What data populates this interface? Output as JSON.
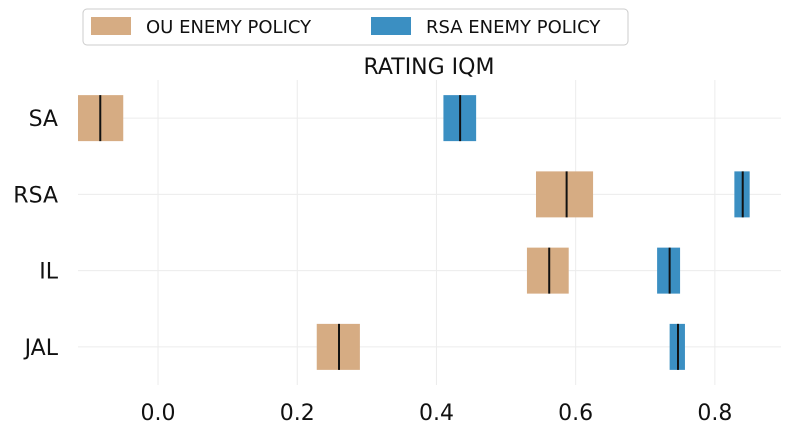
{
  "chart_data": {
    "type": "bar",
    "title": "RATING IQM",
    "xlabel": "",
    "ylabel": "",
    "categories": [
      "SA",
      "RSA",
      "IL",
      "JAL"
    ],
    "xlim": [
      -0.115,
      0.895
    ],
    "xticks": [
      0.0,
      0.2,
      0.4,
      0.6,
      0.8
    ],
    "grid": true,
    "legend_placement": "top-left, above plot",
    "series": [
      {
        "name": "OU ENEMY POLICY",
        "color": "#d6ac83",
        "intervals": [
          {
            "category": "SA",
            "low": -0.115,
            "high": -0.05,
            "median": -0.083
          },
          {
            "category": "RSA",
            "low": 0.543,
            "high": 0.625,
            "median": 0.587
          },
          {
            "category": "IL",
            "low": 0.53,
            "high": 0.59,
            "median": 0.562
          },
          {
            "category": "JAL",
            "low": 0.228,
            "high": 0.29,
            "median": 0.26
          }
        ]
      },
      {
        "name": "RSA ENEMY POLICY",
        "color": "#3b8fc2",
        "intervals": [
          {
            "category": "SA",
            "low": 0.41,
            "high": 0.457,
            "median": 0.434
          },
          {
            "category": "RSA",
            "low": 0.828,
            "high": 0.85,
            "median": 0.84
          },
          {
            "category": "IL",
            "low": 0.717,
            "high": 0.75,
            "median": 0.735
          },
          {
            "category": "JAL",
            "low": 0.735,
            "high": 0.757,
            "median": 0.747
          }
        ]
      }
    ]
  }
}
